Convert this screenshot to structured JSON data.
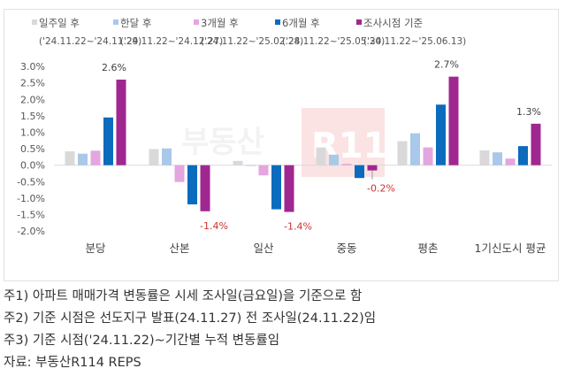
{
  "chart_data": {
    "type": "bar",
    "categories": [
      "분당",
      "산본",
      "일산",
      "중동",
      "평촌",
      "1기신도시 평균"
    ],
    "series": [
      {
        "name": "일주일 후",
        "period": "('24.11.22~'24.11.29)",
        "color": "#d9d9d9",
        "values": [
          0.42,
          0.49,
          0.13,
          0.54,
          0.73,
          0.45
        ]
      },
      {
        "name": "한달 후",
        "period": "('24.11.22~'24.12.27)",
        "color": "#a9c8ea",
        "values": [
          0.35,
          0.51,
          -0.02,
          0.32,
          0.97,
          0.39
        ]
      },
      {
        "name": "3개월 후",
        "period": "('24.11.22~'25.02.28)",
        "color": "#e3a6df",
        "values": [
          0.44,
          -0.51,
          -0.31,
          0.04,
          0.54,
          0.2
        ]
      },
      {
        "name": "6개월 후",
        "period": "('24.11.22~'25.05.30)",
        "color": "#0b6bbd",
        "values": [
          1.45,
          -1.19,
          -1.34,
          -0.39,
          1.84,
          0.58
        ]
      },
      {
        "name": "조사시점 기준",
        "period": "('24.11.22~'25.06.13)",
        "color": "#a0278f",
        "values": [
          2.6,
          -1.4,
          -1.42,
          -0.16,
          2.69,
          1.26
        ]
      }
    ],
    "data_labels": [
      "2.6%",
      "-1.4%",
      "-1.4%",
      "-0.2%",
      "2.7%",
      "1.3%"
    ],
    "ylim": [
      -2.0,
      3.0
    ],
    "yticks": [
      "3.0%",
      "2.5%",
      "2.0%",
      "1.5%",
      "1.0%",
      "0.5%",
      "0.0%",
      "-0.5%",
      "-1.0%",
      "-1.5%",
      "-2.0%"
    ],
    "legend_position": "top",
    "grid": false,
    "positive_label_color": "#404040",
    "negative_label_color": "#d03030"
  },
  "watermark": "부동산R114",
  "notes": [
    "주1) 아파트 매매가격 변동률은 시세 조사일(금요일)을 기준으로 함",
    "주2) 기준 시점은 선도지구 발표(24.11.27) 전 조사일(24.11.22)임",
    "주3) 기준 시점('24.11.22)~기간별 누적 변동률임",
    "자료: 부동산R114 REPS"
  ]
}
